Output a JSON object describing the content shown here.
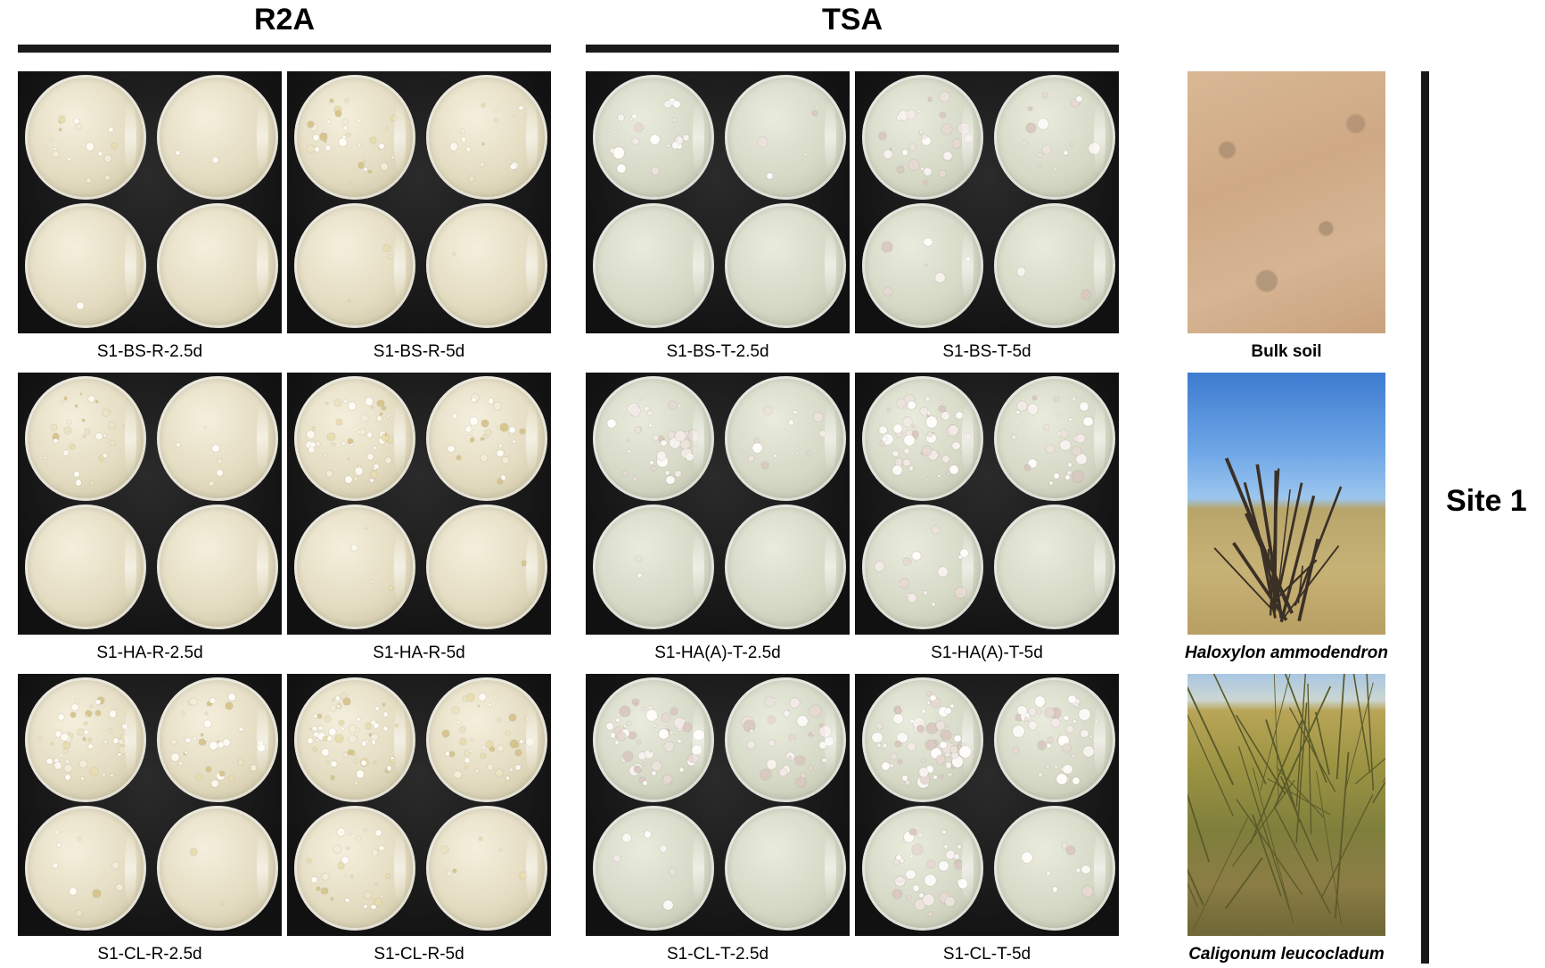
{
  "headers": {
    "r2a": "R2A",
    "tsa": "TSA"
  },
  "site_label": "Site 1",
  "plates": [
    {
      "caption": "S1-BS-R-2.5d",
      "medium": "R2A",
      "density": [
        16,
        2,
        1,
        0
      ]
    },
    {
      "caption": "S1-BS-R-5d",
      "medium": "R2A",
      "density": [
        34,
        14,
        3,
        1
      ]
    },
    {
      "caption": "S1-BS-T-2.5d",
      "medium": "TSA",
      "density": [
        22,
        4,
        0,
        0
      ]
    },
    {
      "caption": "S1-BS-T-5d",
      "medium": "TSA",
      "density": [
        32,
        14,
        6,
        2
      ]
    },
    {
      "caption": "S1-HA-R-2.5d",
      "medium": "R2A",
      "density": [
        30,
        6,
        0,
        0
      ]
    },
    {
      "caption": "S1-HA-R-5d",
      "medium": "R2A",
      "density": [
        48,
        28,
        4,
        1
      ]
    },
    {
      "caption": "S1-HA(A)-T-2.5d",
      "medium": "TSA",
      "density": [
        38,
        12,
        2,
        0
      ]
    },
    {
      "caption": "S1-HA(A)-T-5d",
      "medium": "TSA",
      "density": [
        52,
        30,
        14,
        0
      ]
    },
    {
      "caption": "S1-CL-R-2.5d",
      "medium": "R2A",
      "density": [
        52,
        36,
        10,
        2
      ]
    },
    {
      "caption": "S1-CL-R-5d",
      "medium": "R2A",
      "density": [
        60,
        40,
        28,
        6
      ]
    },
    {
      "caption": "S1-CL-T-2.5d",
      "medium": "TSA",
      "density": [
        56,
        34,
        6,
        0
      ]
    },
    {
      "caption": "S1-CL-T-5d",
      "medium": "TSA",
      "density": [
        62,
        44,
        34,
        8
      ]
    }
  ],
  "site_photos": [
    {
      "caption": "Bulk soil",
      "kind": "soil"
    },
    {
      "caption": "Haloxylon ammodendron",
      "kind": "haloxylon"
    },
    {
      "caption": "Caligonum leucocladum",
      "kind": "caligonum"
    }
  ]
}
